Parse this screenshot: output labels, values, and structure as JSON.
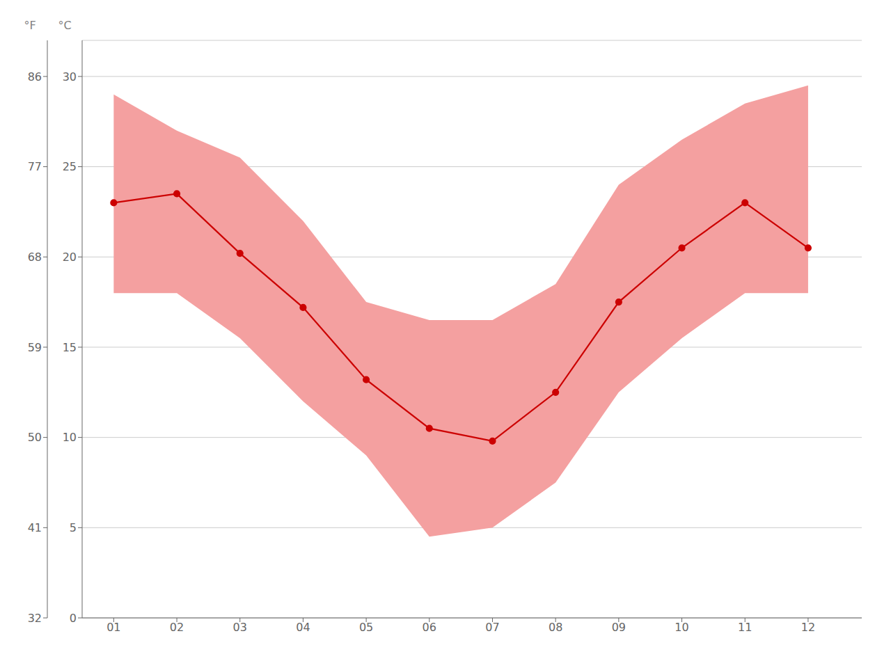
{
  "chart_data": {
    "type": "line",
    "ylabel": "°C",
    "y2label": "°F",
    "x": [
      1,
      2,
      3,
      4,
      5,
      6,
      7,
      8,
      9,
      10,
      11,
      12
    ],
    "xlim": [
      0.5,
      12.85
    ],
    "xticks": [
      {
        "value": 1,
        "label": "01"
      },
      {
        "value": 2,
        "label": "02"
      },
      {
        "value": 3,
        "label": "03"
      },
      {
        "value": 4,
        "label": "04"
      },
      {
        "value": 5,
        "label": "05"
      },
      {
        "value": 6,
        "label": "06"
      },
      {
        "value": 7,
        "label": "07"
      },
      {
        "value": 8,
        "label": "08"
      },
      {
        "value": 9,
        "label": "09"
      },
      {
        "value": 10,
        "label": "10"
      },
      {
        "value": 11,
        "label": "11"
      },
      {
        "value": 12,
        "label": "12"
      }
    ],
    "ylim": [
      0,
      32
    ],
    "yticks": [
      0,
      5,
      10,
      15,
      20,
      25,
      30
    ],
    "y2lim": [
      32,
      89.6
    ],
    "y2ticks": [
      32,
      41,
      50,
      59,
      68,
      77,
      86
    ],
    "grid": true,
    "series": [
      {
        "type": "area",
        "color": "#f4a0a0",
        "low": [
          18.0,
          18.0,
          15.5,
          12.0,
          9.0,
          4.5,
          5.0,
          7.5,
          12.5,
          15.5,
          18.0,
          18.0
        ],
        "high": [
          29.0,
          27.0,
          25.5,
          22.0,
          17.5,
          16.5,
          16.5,
          18.5,
          24.0,
          26.5,
          28.5,
          29.5
        ]
      },
      {
        "type": "line",
        "color": "#cc0000",
        "marker": "circle",
        "values": [
          23.0,
          23.5,
          20.2,
          17.2,
          13.2,
          10.5,
          9.8,
          12.5,
          17.5,
          20.5,
          23.0,
          20.5
        ]
      }
    ]
  }
}
